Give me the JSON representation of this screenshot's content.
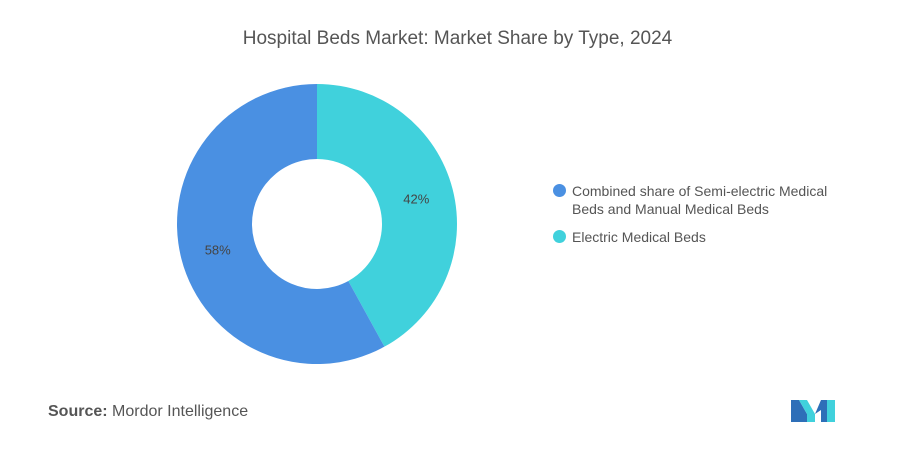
{
  "chart_data": {
    "type": "pie",
    "title": "Hospital Beds Market: Market Share by Type, 2024",
    "donut": true,
    "slices": [
      {
        "label": "Electric Medical Beds",
        "value": 42,
        "display": "42%",
        "color": "#40D1DC"
      },
      {
        "label": "Combined share of Semi-electric Medical Beds and Manual Medical Beds",
        "value": 58,
        "display": "58%",
        "color": "#4A90E2"
      }
    ],
    "legend_position": "right"
  },
  "legend": [
    {
      "label": "Combined share of Semi-electric Medical Beds and Manual Medical Beds",
      "color": "#4A90E2"
    },
    {
      "label": "Electric Medical Beds",
      "color": "#40D1DC"
    }
  ],
  "source": {
    "label": "Source:",
    "value": "Mordor Intelligence"
  },
  "logo_icon": "mordor-intelligence-logo"
}
